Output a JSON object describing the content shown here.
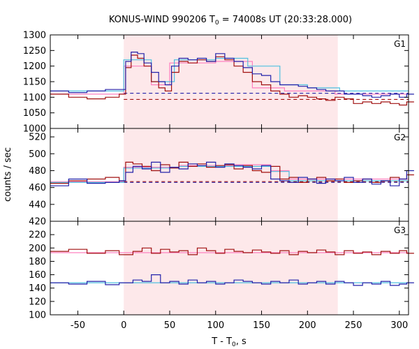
{
  "chart_data": {
    "type": "line",
    "title": "KONUS-WIND 990206 T₀ = 74008s UT (20:33:28.000)",
    "title_parts": {
      "prefix": "KONUS-WIND 990206 T",
      "sub": "0",
      "suffix": " = 74008s UT (20:33:28.000)"
    },
    "xlabel": "T - T₀, s",
    "xlabel_parts": {
      "prefix": "T - T",
      "sub": "0",
      "suffix": ", s"
    },
    "ylabel": "counts / sec",
    "xlim": [
      -80,
      310
    ],
    "xticks": [
      -50,
      0,
      50,
      100,
      150,
      200,
      250,
      300
    ],
    "highlight_interval": [
      0,
      233
    ],
    "colors": {
      "series_red": "#a01010",
      "series_blue": "#2222aa",
      "model_cyan": "#4fc0e0",
      "model_pink": "#ff80c0",
      "highlight": "#fde8ea"
    },
    "panels": [
      {
        "name": "G1",
        "ylim": [
          1000,
          1300
        ],
        "yticks": [
          1000,
          1050,
          1100,
          1150,
          1200,
          1250,
          1300
        ],
        "series": [
          {
            "color": "red",
            "x": [
              -80,
              -60,
              -40,
              -20,
              -5,
              2,
              8,
              15,
              22,
              30,
              38,
              45,
              52,
              60,
              70,
              80,
              90,
              100,
              110,
              120,
              130,
              140,
              150,
              160,
              170,
              180,
              190,
              200,
              210,
              220,
              230,
              240,
              250,
              260,
              270,
              280,
              290,
              300,
              308
            ],
            "y": [
              1110,
              1100,
              1095,
              1100,
              1110,
              1195,
              1235,
              1225,
              1200,
              1150,
              1130,
              1120,
              1180,
              1215,
              1210,
              1220,
              1215,
              1230,
              1220,
              1200,
              1180,
              1150,
              1140,
              1120,
              1110,
              1100,
              1105,
              1100,
              1095,
              1090,
              1100,
              1095,
              1080,
              1085,
              1080,
              1085,
              1080,
              1075,
              1085
            ]
          },
          {
            "color": "blue",
            "x": [
              -80,
              -60,
              -40,
              -20,
              -5,
              2,
              8,
              15,
              22,
              30,
              38,
              45,
              52,
              60,
              70,
              80,
              90,
              100,
              110,
              120,
              130,
              140,
              150,
              160,
              170,
              180,
              190,
              200,
              210,
              220,
              230,
              240,
              250,
              260,
              270,
              280,
              290,
              300,
              308
            ],
            "y": [
              1120,
              1115,
              1120,
              1125,
              1125,
              1215,
              1245,
              1240,
              1210,
              1180,
              1150,
              1140,
              1200,
              1225,
              1220,
              1225,
              1215,
              1240,
              1225,
              1215,
              1195,
              1175,
              1170,
              1150,
              1140,
              1140,
              1135,
              1130,
              1125,
              1120,
              1120,
              1110,
              1110,
              1105,
              1100,
              1105,
              1110,
              1100,
              1110
            ]
          }
        ],
        "models": [
          {
            "color": "pink",
            "steps": [
              [
                -80,
                1110
              ],
              [
                -5,
                1110
              ],
              [
                0,
                1200
              ],
              [
                30,
                1140
              ],
              [
                50,
                1210
              ],
              [
                100,
                1215
              ],
              [
                140,
                1130
              ],
              [
                175,
                1120
              ],
              [
                230,
                1110
              ],
              [
                310,
                1110
              ]
            ]
          },
          {
            "color": "cyan",
            "steps": [
              [
                -80,
                1120
              ],
              [
                -5,
                1120
              ],
              [
                0,
                1220
              ],
              [
                30,
                1150
              ],
              [
                55,
                1220
              ],
              [
                100,
                1225
              ],
              [
                135,
                1200
              ],
              [
                170,
                1140
              ],
              [
                200,
                1130
              ],
              [
                235,
                1120
              ],
              [
                310,
                1120
              ]
            ]
          }
        ],
        "backgrounds": [
          {
            "color": "red",
            "value": 1093,
            "range": [
              0,
              310
            ]
          },
          {
            "color": "blue",
            "value": 1113,
            "range": [
              0,
              310
            ]
          }
        ]
      },
      {
        "name": "G2",
        "ylim": [
          420,
          530
        ],
        "yticks": [
          420,
          440,
          460,
          480,
          500,
          520
        ],
        "series": [
          {
            "color": "red",
            "x": [
              -80,
              -60,
              -40,
              -20,
              -5,
              2,
              10,
              20,
              30,
              40,
              50,
              60,
              70,
              80,
              90,
              100,
              110,
              120,
              130,
              140,
              150,
              160,
              170,
              180,
              190,
              200,
              210,
              220,
              230,
              240,
              250,
              260,
              270,
              280,
              290,
              300,
              308
            ],
            "y": [
              465,
              468,
              470,
              472,
              468,
              490,
              488,
              485,
              480,
              487,
              483,
              490,
              485,
              488,
              484,
              486,
              487,
              482,
              486,
              480,
              478,
              485,
              470,
              472,
              466,
              470,
              472,
              468,
              470,
              466,
              468,
              470,
              466,
              468,
              472,
              470,
              475
            ]
          },
          {
            "color": "blue",
            "x": [
              -80,
              -60,
              -40,
              -20,
              -5,
              2,
              10,
              20,
              30,
              40,
              50,
              60,
              70,
              80,
              90,
              100,
              110,
              120,
              130,
              140,
              150,
              160,
              170,
              180,
              190,
              200,
              210,
              220,
              230,
              240,
              250,
              260,
              270,
              280,
              290,
              300,
              308
            ],
            "y": [
              462,
              470,
              465,
              466,
              468,
              478,
              485,
              482,
              490,
              478,
              484,
              482,
              488,
              486,
              490,
              484,
              488,
              486,
              484,
              482,
              486,
              470,
              468,
              466,
              472,
              470,
              465,
              470,
              468,
              472,
              466,
              470,
              464,
              468,
              462,
              470,
              480
            ]
          }
        ],
        "models": [
          {
            "color": "pink",
            "steps": [
              [
                -80,
                467
              ],
              [
                -5,
                467
              ],
              [
                0,
                484
              ],
              [
                60,
                486
              ],
              [
                120,
                487
              ],
              [
                160,
                480
              ],
              [
                180,
                470
              ],
              [
                310,
                468
              ]
            ]
          },
          {
            "color": "cyan",
            "steps": [
              [
                -80,
                466
              ],
              [
                -5,
                466
              ],
              [
                0,
                483
              ],
              [
                60,
                485
              ],
              [
                120,
                485
              ],
              [
                160,
                479
              ],
              [
                180,
                468
              ],
              [
                310,
                466
              ]
            ]
          }
        ],
        "backgrounds": [
          {
            "color": "red",
            "value": 467,
            "range": [
              0,
              310
            ]
          },
          {
            "color": "blue",
            "value": 466,
            "range": [
              0,
              310
            ]
          }
        ]
      },
      {
        "name": "G3",
        "ylim": [
          100,
          240
        ],
        "yticks": [
          100,
          120,
          140,
          160,
          180,
          200,
          220
        ],
        "series": [
          {
            "color": "red",
            "x": [
              -80,
              -60,
              -40,
              -20,
              -5,
              10,
              20,
              30,
              40,
              50,
              60,
              70,
              80,
              90,
              100,
              110,
              120,
              130,
              140,
              150,
              160,
              170,
              180,
              190,
              200,
              210,
              220,
              230,
              240,
              250,
              260,
              270,
              280,
              290,
              300,
              308
            ],
            "y": [
              195,
              198,
              192,
              196,
              190,
              195,
              200,
              192,
              198,
              194,
              196,
              190,
              200,
              196,
              192,
              198,
              195,
              193,
              197,
              194,
              192,
              196,
              190,
              195,
              193,
              197,
              194,
              190,
              196,
              192,
              194,
              190,
              195,
              192,
              196,
              192
            ]
          },
          {
            "color": "blue",
            "x": [
              -80,
              -60,
              -40,
              -20,
              -5,
              10,
              20,
              30,
              40,
              50,
              60,
              70,
              80,
              90,
              100,
              110,
              120,
              130,
              140,
              150,
              160,
              170,
              180,
              190,
              200,
              210,
              220,
              230,
              240,
              250,
              260,
              270,
              280,
              290,
              300,
              308
            ],
            "y": [
              148,
              146,
              150,
              145,
              148,
              152,
              150,
              160,
              148,
              150,
              146,
              152,
              148,
              150,
              146,
              148,
              152,
              150,
              148,
              146,
              150,
              148,
              152,
              146,
              148,
              150,
              146,
              150,
              148,
              144,
              148,
              146,
              150,
              144,
              146,
              148
            ]
          }
        ],
        "models": [
          {
            "color": "pink",
            "steps": [
              [
                -80,
                193
              ],
              [
                310,
                193
              ]
            ]
          },
          {
            "color": "cyan",
            "steps": [
              [
                -80,
                148
              ],
              [
                310,
                148
              ]
            ]
          }
        ],
        "backgrounds": []
      }
    ]
  }
}
